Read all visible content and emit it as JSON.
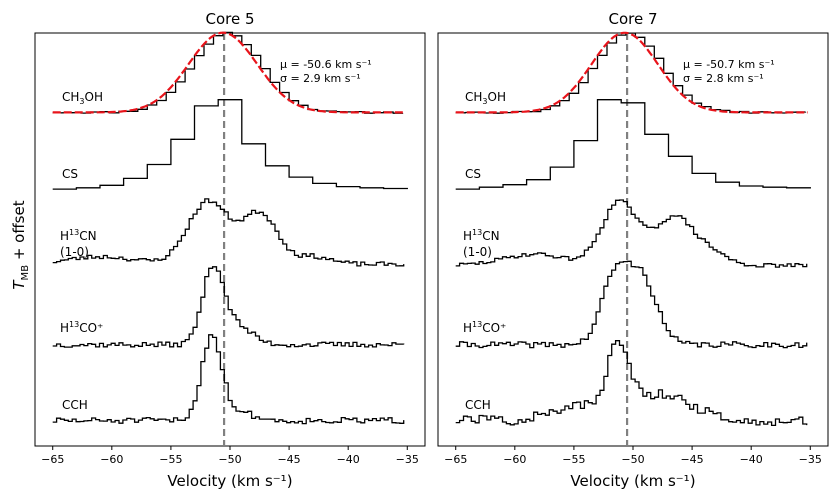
{
  "chart_data": {
    "type": "line",
    "ylabel_main": "T",
    "ylabel_sub": "MB",
    "ylabel_rest": " + offset",
    "xlabel": "Velocity (km s⁻¹)",
    "xticks": [
      -65,
      -60,
      -55,
      -50,
      -45,
      -40,
      -35
    ],
    "xlim": [
      -66.5,
      -33.5
    ],
    "vline": -50.5,
    "colors": {
      "observed": "#000000",
      "fit": "#e8141b",
      "vline": "#808080"
    },
    "panels": [
      {
        "title": "Core 5",
        "annotation": {
          "mu": "μ = -50.6 km s⁻¹",
          "sigma": "σ = 2.9 km s⁻¹"
        },
        "fit": {
          "mu": -50.6,
          "sigma": 2.9,
          "amp": 1.45,
          "baseline": 0.01
        },
        "series": [
          {
            "name": "CH3OH",
            "label_main": "CH",
            "label_sub": "3",
            "label_rest": "OH",
            "label_line2": "",
            "type": "gauss",
            "amp": 1.45,
            "mu": -50.6,
            "sigma": 2.9,
            "step": 0.8,
            "noise": 0.015,
            "seed": 11,
            "baseline": 0.01
          },
          {
            "name": "CS",
            "label_main": "CS",
            "type": "points",
            "x": [
              -65,
              -63,
              -61,
              -59,
              -57,
              -55,
              -53,
              -51,
              -49,
              -47,
              -45,
              -43,
              -41,
              -39,
              -37,
              -35
            ],
            "y": [
              0.03,
              0.05,
              0.09,
              0.2,
              0.42,
              0.82,
              1.35,
              1.45,
              0.75,
              0.4,
              0.22,
              0.12,
              0.07,
              0.05,
              0.04,
              0.03
            ]
          },
          {
            "name": "H13CN (1-0)",
            "label_main": "H",
            "label_sup": "13",
            "label_rest": "CN",
            "label_line2": "(1-0)",
            "type": "multi",
            "step": 0.33,
            "noise": 0.035,
            "seed": 23,
            "baseline": 0.06,
            "components": [
              {
                "amp": 0.12,
                "mu": -61.0,
                "sigma": 2.8
              },
              {
                "amp": 1.0,
                "mu": -52.0,
                "sigma": 1.7
              },
              {
                "amp": 0.8,
                "mu": -47.6,
                "sigma": 1.5
              },
              {
                "amp": 0.12,
                "mu": -43.0,
                "sigma": 1.4
              }
            ]
          },
          {
            "name": "H13CO+",
            "label_main": "H",
            "label_sup": "13",
            "label_rest": "CO⁺",
            "label_line2": "",
            "type": "multi",
            "step": 0.33,
            "noise": 0.04,
            "seed": 37,
            "baseline": 0.02,
            "components": [
              {
                "amp": 1.15,
                "mu": -51.6,
                "sigma": 0.9
              },
              {
                "amp": 0.28,
                "mu": -49.6,
                "sigma": 1.3
              }
            ]
          },
          {
            "name": "CCH",
            "label_main": "CCH",
            "label_line2": "",
            "type": "multi",
            "step": 0.33,
            "noise": 0.045,
            "seed": 51,
            "baseline": 0.02,
            "components": [
              {
                "amp": 1.25,
                "mu": -51.7,
                "sigma": 0.85
              },
              {
                "amp": 0.12,
                "mu": -49.3,
                "sigma": 1.2
              }
            ]
          }
        ]
      },
      {
        "title": "Core 7",
        "annotation": {
          "mu": "μ = -50.7 km s⁻¹",
          "sigma": "σ = 2.8 km s⁻¹"
        },
        "fit": {
          "mu": -50.7,
          "sigma": 2.8,
          "amp": 1.45,
          "baseline": 0.01
        },
        "series": [
          {
            "name": "CH3OH",
            "label_main": "CH",
            "label_sub": "3",
            "label_rest": "OH",
            "label_line2": "",
            "type": "gauss",
            "amp": 1.45,
            "mu": -50.7,
            "sigma": 2.8,
            "step": 0.8,
            "noise": 0.015,
            "seed": 13,
            "baseline": 0.01
          },
          {
            "name": "CS",
            "label_main": "CS",
            "type": "points",
            "x": [
              -65,
              -63,
              -61,
              -59,
              -57,
              -55,
              -53,
              -51,
              -49,
              -47,
              -45,
              -43,
              -41,
              -39,
              -37,
              -35
            ],
            "y": [
              0.03,
              0.06,
              0.1,
              0.18,
              0.38,
              0.8,
              1.45,
              1.4,
              0.9,
              0.55,
              0.28,
              0.14,
              0.08,
              0.06,
              0.05,
              0.04
            ]
          },
          {
            "name": "H13CN (1-0)",
            "label_main": "H",
            "label_sup": "13",
            "label_rest": "CN",
            "label_line2": "(1-0)",
            "type": "multi",
            "step": 0.33,
            "noise": 0.03,
            "seed": 29,
            "baseline": 0.04,
            "components": [
              {
                "amp": 0.18,
                "mu": -58.5,
                "sigma": 2.6
              },
              {
                "amp": 1.0,
                "mu": -51.3,
                "sigma": 1.5
              },
              {
                "amp": 0.78,
                "mu": -46.6,
                "sigma": 1.7
              },
              {
                "amp": 0.15,
                "mu": -43.2,
                "sigma": 1.2
              }
            ]
          },
          {
            "name": "H13CO+",
            "label_main": "H",
            "label_sup": "13",
            "label_rest": "CO⁺",
            "label_line2": "",
            "type": "multi",
            "step": 0.33,
            "noise": 0.045,
            "seed": 41,
            "baseline": 0.02,
            "components": [
              {
                "amp": 0.95,
                "mu": -51.8,
                "sigma": 1.1
              },
              {
                "amp": 1.05,
                "mu": -49.5,
                "sigma": 1.3
              }
            ]
          },
          {
            "name": "CCH",
            "label_main": "CCH",
            "label_line2": "",
            "type": "multi",
            "step": 0.33,
            "noise": 0.08,
            "seed": 57,
            "baseline": 0.03,
            "components": [
              {
                "amp": 1.0,
                "mu": -51.4,
                "sigma": 1.0
              },
              {
                "amp": 0.4,
                "mu": -47.5,
                "sigma": 2.2
              },
              {
                "amp": 0.2,
                "mu": -55.0,
                "sigma": 2.0
              }
            ]
          }
        ]
      }
    ]
  }
}
